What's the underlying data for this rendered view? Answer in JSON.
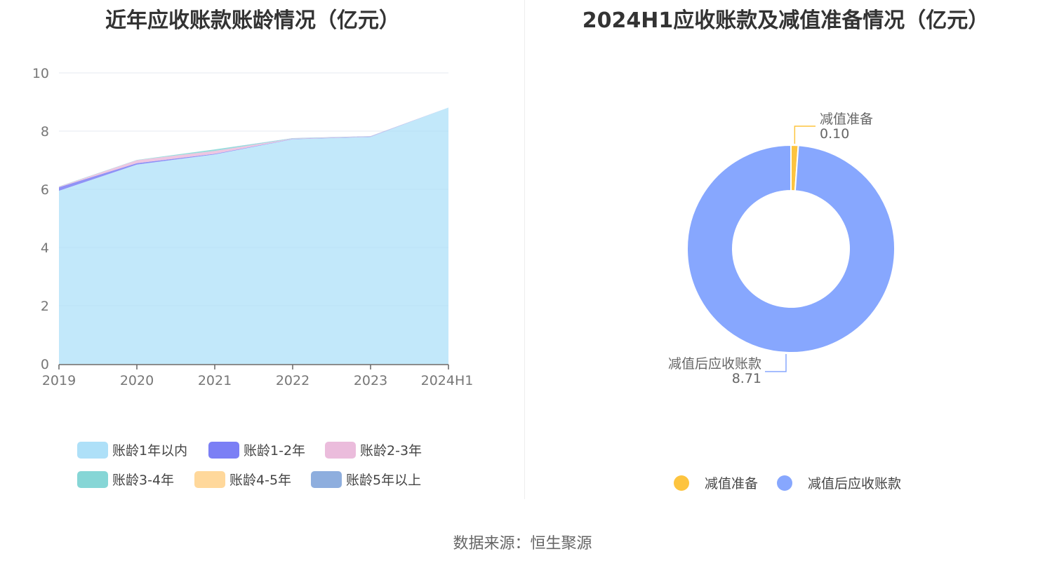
{
  "left_title": "近年应收账款账龄情况（亿元）",
  "right_title": "2024H1应收账款及减值准备情况（亿元）",
  "source": "数据来源：恒生聚源",
  "chart_data": [
    {
      "type": "area",
      "stacked": true,
      "title": "近年应收账款账龄情况（亿元）",
      "categories": [
        "2019",
        "2020",
        "2021",
        "2022",
        "2023",
        "2024H1"
      ],
      "ylim": [
        0,
        10
      ],
      "yticks": [
        "0",
        "2",
        "4",
        "6",
        "8",
        "10"
      ],
      "grid": true,
      "legend_position": "bottom",
      "series": [
        {
          "name": "账龄1年以内",
          "color": "#aee0f8",
          "values": [
            5.95,
            6.85,
            7.2,
            7.72,
            7.8,
            8.81
          ]
        },
        {
          "name": "账龄1-2年",
          "color": "#7b7ff5",
          "values": [
            0.12,
            0.05,
            0.02,
            0.01,
            0.01,
            0.0
          ]
        },
        {
          "name": "账龄2-3年",
          "color": "#ebbcdc",
          "values": [
            0.02,
            0.1,
            0.1,
            0.01,
            0.01,
            0.0
          ]
        },
        {
          "name": "账龄3-4年",
          "color": "#86d6d6",
          "values": [
            0.01,
            0.01,
            0.05,
            0.01,
            0.0,
            0.0
          ]
        },
        {
          "name": "账龄4-5年",
          "color": "#ffd89b",
          "values": [
            0.0,
            0.0,
            0.0,
            0.0,
            0.0,
            0.0
          ]
        },
        {
          "name": "账龄5年以上",
          "color": "#8eaede",
          "values": [
            0.0,
            0.0,
            0.0,
            0.01,
            0.01,
            0.0
          ]
        }
      ]
    },
    {
      "type": "pie",
      "donut": true,
      "title": "2024H1应收账款及减值准备情况（亿元）",
      "legend_position": "bottom",
      "slices": [
        {
          "name": "减值准备",
          "value": 0.1,
          "label": "0.10",
          "color": "#fdc43f"
        },
        {
          "name": "减值后应收账款",
          "value": 8.71,
          "label": "8.71",
          "color": "#87a7fe"
        }
      ]
    }
  ]
}
